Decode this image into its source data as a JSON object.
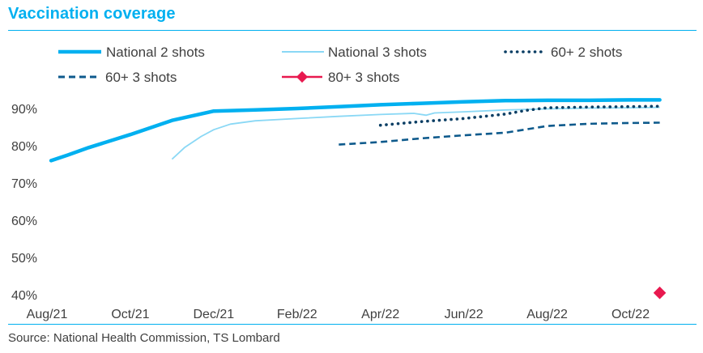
{
  "title": "Vaccination coverage",
  "source": "Source: National Health Commission, TS Lombard",
  "colors": {
    "title": "#00b0f0",
    "national2": "#00b0f0",
    "national3": "#8ad8f5",
    "sixty2": "#0a3e64",
    "sixty3": "#0e5a8c",
    "eighty3": "#e8194f"
  },
  "chart_data": {
    "type": "line",
    "title": "Vaccination coverage",
    "xlabel": "",
    "ylabel": "",
    "x_ticks": [
      "Aug/21",
      "Oct/21",
      "Dec/21",
      "Feb/22",
      "Apr/22",
      "Jun/22",
      "Aug/22",
      "Oct/22"
    ],
    "y_ticks": [
      "40%",
      "50%",
      "60%",
      "70%",
      "80%",
      "90%"
    ],
    "ylim": [
      40,
      90
    ],
    "x_unit": "months since Aug/21",
    "xlim": [
      0,
      15
    ],
    "grid": false,
    "legend_position": "top",
    "series": [
      {
        "name": "National 2 shots",
        "style": "solid-thick",
        "points": [
          [
            0.1,
            76
          ],
          [
            0.5,
            77.5
          ],
          [
            1,
            79.5
          ],
          [
            2,
            83
          ],
          [
            3,
            86.8
          ],
          [
            4,
            89.3
          ],
          [
            5,
            89.6
          ],
          [
            6,
            90
          ],
          [
            7,
            90.5
          ],
          [
            8,
            91
          ],
          [
            9,
            91.4
          ],
          [
            10,
            91.8
          ],
          [
            11,
            92.1
          ],
          [
            12,
            92.2
          ],
          [
            13,
            92.2
          ],
          [
            14,
            92.3
          ],
          [
            14.7,
            92.3
          ]
        ]
      },
      {
        "name": "National 3 shots",
        "style": "solid-thin",
        "points": [
          [
            3.0,
            76.4
          ],
          [
            3.3,
            79.5
          ],
          [
            3.7,
            82.5
          ],
          [
            4.0,
            84.3
          ],
          [
            4.4,
            85.8
          ],
          [
            5,
            86.7
          ],
          [
            6,
            87.3
          ],
          [
            7,
            87.9
          ],
          [
            8,
            88.4
          ],
          [
            8.8,
            88.7
          ],
          [
            9.1,
            88.2
          ],
          [
            9.3,
            88.8
          ],
          [
            10,
            89.1
          ],
          [
            11,
            89.6
          ],
          [
            12,
            89.9
          ],
          [
            13,
            90.1
          ],
          [
            14,
            90.2
          ],
          [
            14.7,
            90.3
          ]
        ]
      },
      {
        "name": "60+ 2 shots",
        "style": "dotted",
        "points": [
          [
            8.0,
            85.5
          ],
          [
            8.5,
            86
          ],
          [
            9,
            86.5
          ],
          [
            10,
            87.3
          ],
          [
            11,
            88.5
          ],
          [
            11.5,
            89.5
          ],
          [
            12,
            90.2
          ],
          [
            13,
            90.4
          ],
          [
            14,
            90.5
          ],
          [
            14.7,
            90.6
          ]
        ]
      },
      {
        "name": "60+ 3 shots",
        "style": "dashed",
        "points": [
          [
            7.0,
            80.3
          ],
          [
            8,
            81
          ],
          [
            9,
            82
          ],
          [
            10,
            82.8
          ],
          [
            11,
            83.5
          ],
          [
            12,
            85.3
          ],
          [
            13,
            85.9
          ],
          [
            14,
            86.1
          ],
          [
            14.7,
            86.2
          ]
        ]
      },
      {
        "name": "80+ 3 shots",
        "style": "marker",
        "points": [
          [
            14.7,
            40.5
          ]
        ]
      }
    ]
  }
}
